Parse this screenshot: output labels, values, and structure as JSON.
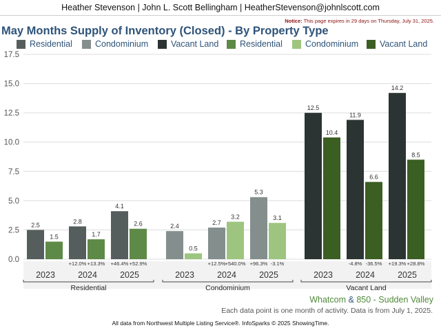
{
  "header": {
    "agent_line": "Heather Stevenson | John L. Scott Bellingham | HeatherStevenson@johnlscott.com",
    "notice_label": "Notice:",
    "notice_text": "This page expires in 29 days on Thursday, July 31, 2025."
  },
  "title": "May Months Supply of Inventory (Closed) - By Property Type",
  "legend": [
    {
      "label": "Residential",
      "color": "#555e5c"
    },
    {
      "label": "Condominium",
      "color": "#848f8d"
    },
    {
      "label": "Vacant Land",
      "color": "#2b3432"
    },
    {
      "label": "Residential",
      "color": "#5e8a48"
    },
    {
      "label": "Condominium",
      "color": "#9dc57f"
    },
    {
      "label": "Vacant Land",
      "color": "#3b5e23"
    }
  ],
  "chart_data": {
    "type": "bar",
    "ylim": [
      0,
      17.5
    ],
    "yticks": [
      "0.0",
      "2.5",
      "5.0",
      "7.5",
      "10.0",
      "12.5",
      "15.0",
      "17.5"
    ],
    "grid": true,
    "legend_position": "top",
    "groups": [
      {
        "name": "Residential",
        "years": [
          {
            "year": "2023",
            "values": [
              2.5,
              1.5
            ],
            "labels": [
              "2.5",
              "1.5"
            ],
            "changes": [
              "",
              ""
            ]
          },
          {
            "year": "2024",
            "values": [
              2.8,
              1.7
            ],
            "labels": [
              "2.8",
              "1.7"
            ],
            "changes": [
              "+12.0%",
              "+13.3%"
            ]
          },
          {
            "year": "2025",
            "values": [
              4.1,
              2.6
            ],
            "labels": [
              "4.1",
              "2.6"
            ],
            "changes": [
              "+46.4%",
              "+52.9%"
            ]
          }
        ]
      },
      {
        "name": "Condominium",
        "years": [
          {
            "year": "2023",
            "values": [
              2.4,
              0.5
            ],
            "labels": [
              "2.4",
              "0.5"
            ],
            "changes": [
              "",
              ""
            ]
          },
          {
            "year": "2024",
            "values": [
              2.7,
              3.2
            ],
            "labels": [
              "2.7",
              "3.2"
            ],
            "changes": [
              "+12.5%",
              "+540.0%"
            ]
          },
          {
            "year": "2025",
            "values": [
              5.3,
              3.1
            ],
            "labels": [
              "5.3",
              "3.1"
            ],
            "changes": [
              "+96.3%",
              "-3.1%"
            ]
          }
        ]
      },
      {
        "name": "Vacant Land",
        "years": [
          {
            "year": "2023",
            "values": [
              12.5,
              10.4
            ],
            "labels": [
              "12.5",
              "10.4"
            ],
            "changes": [
              "",
              ""
            ]
          },
          {
            "year": "2024",
            "values": [
              11.9,
              6.6
            ],
            "labels": [
              "11.9",
              "6.6"
            ],
            "changes": [
              "-4.8%",
              "-36.5%"
            ]
          },
          {
            "year": "2025",
            "values": [
              14.2,
              8.5
            ],
            "labels": [
              "14.2",
              "8.5"
            ],
            "changes": [
              "+19.3%",
              "+28.8%"
            ]
          }
        ]
      }
    ]
  },
  "footer": {
    "region_a": "Whatcom",
    "region_amp": "&",
    "region_b": "850 - Sudden Valley",
    "note": "Each data point is one month of activity. Data is from July 1, 2025.",
    "credit": "All data from Northwest Multiple Listing Service®. InfoSparks © 2025 ShowingTime."
  }
}
